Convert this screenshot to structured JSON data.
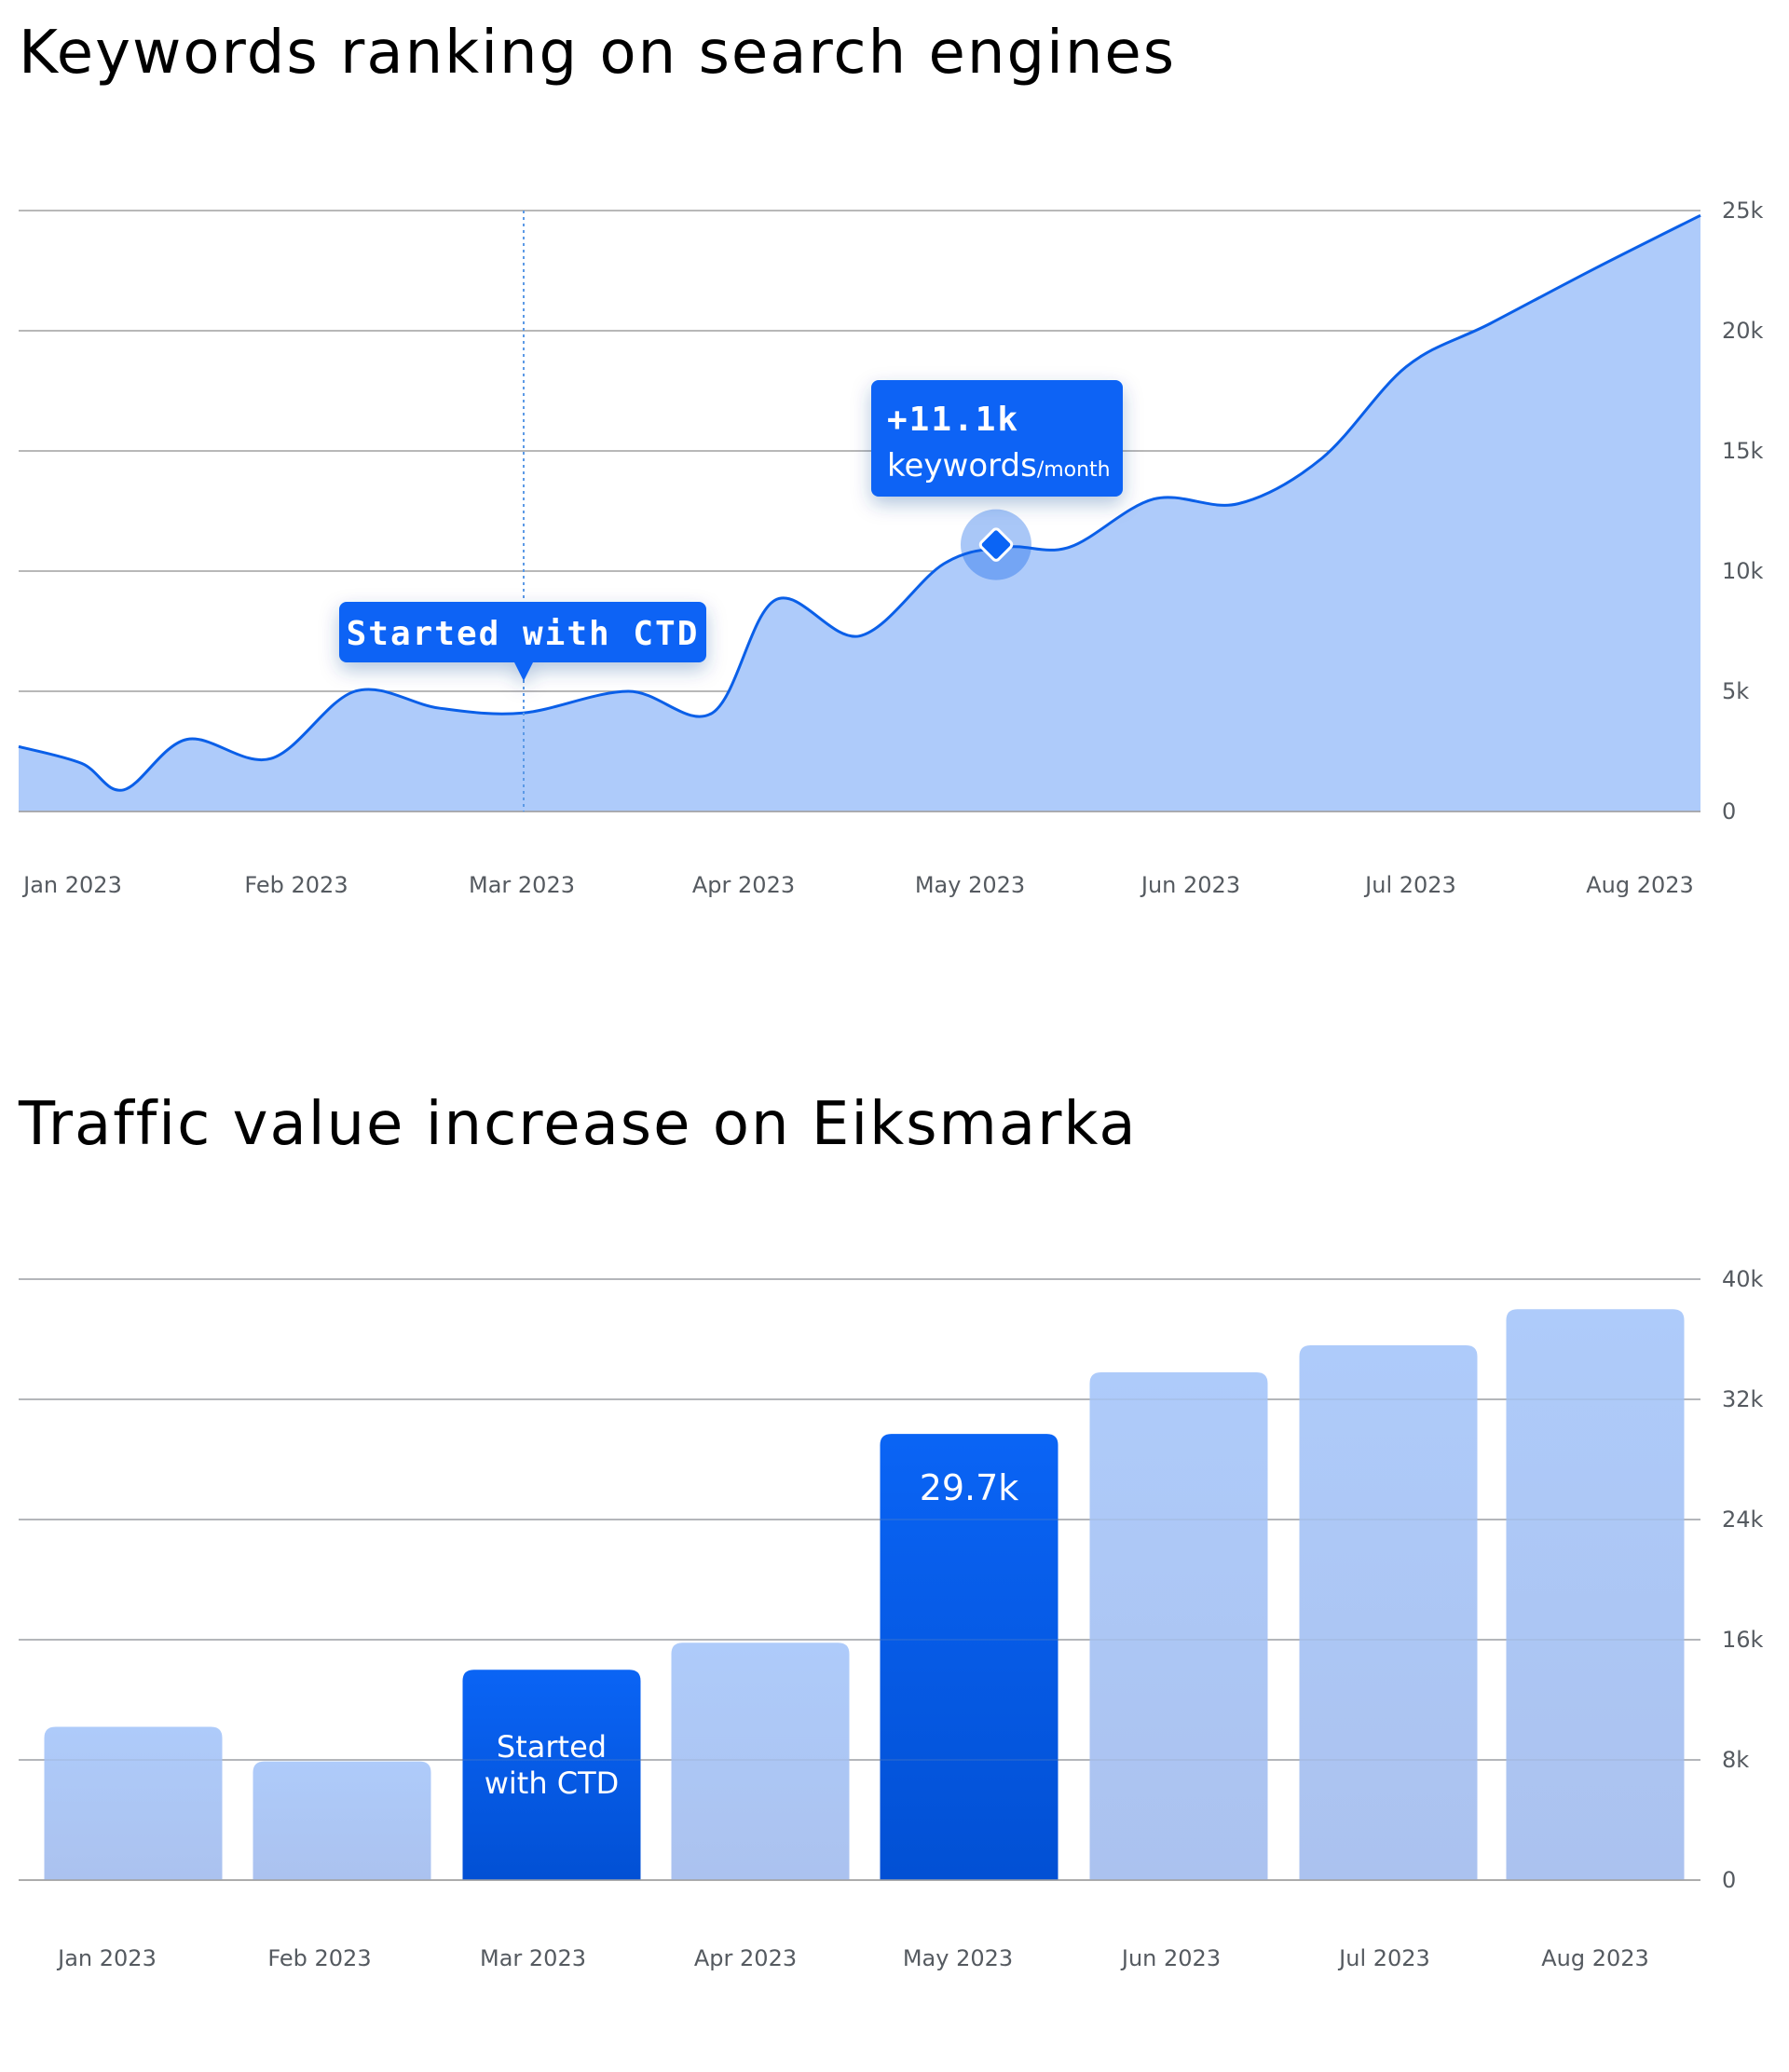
{
  "chart_data": [
    {
      "type": "area",
      "title": "Keywords ranking on search engines",
      "x": [
        "Jan 2023",
        "Feb 2023",
        "Mar 2023",
        "Apr 2023",
        "May 2023",
        "Jun 2023",
        "Jul 2023",
        "Aug 2023"
      ],
      "ylim": [
        0,
        25000
      ],
      "yticks": [
        "0",
        "5k",
        "10k",
        "15k",
        "20k",
        "25k"
      ],
      "grid": true,
      "series": [
        {
          "values_by_month": [
            [
              2023.0,
              2700
            ],
            [
              2023.3,
              2000
            ],
            [
              2023.5,
              900
            ],
            [
              2023.8,
              3000
            ],
            [
              2024.2,
              2200
            ],
            [
              2024.6,
              5000
            ],
            [
              2025.0,
              4300
            ],
            [
              2025.4,
              4100
            ],
            [
              2025.9,
              5000
            ],
            [
              2026.3,
              4100
            ],
            [
              2026.6,
              8800
            ],
            [
              2027.0,
              7300
            ],
            [
              2027.4,
              10300
            ],
            [
              2027.7,
              11000
            ],
            [
              2028.0,
              11000
            ],
            [
              2028.4,
              13000
            ],
            [
              2028.8,
              12800
            ],
            [
              2029.2,
              14700
            ],
            [
              2029.6,
              18500
            ],
            [
              2030.0,
              20300
            ],
            [
              2030.5,
              22600
            ],
            [
              2031.0,
              24800
            ]
          ]
        }
      ],
      "annotations": [
        {
          "text": "Started with CTD",
          "x": "Mar 2023"
        },
        {
          "text": "+11.1k",
          "subtext_main": "keywords",
          "subtext_unit": "/month",
          "x": "May 2023",
          "y": 11100
        }
      ],
      "colors": {
        "line": "#0a5fe8",
        "fill": "#aecbfa",
        "accent": "#0a64f5",
        "grid": "#a0a0a0"
      }
    },
    {
      "type": "bar",
      "title": "Traffic value increase on Eiksmarka",
      "categories": [
        "Jan 2023",
        "Feb 2023",
        "Mar 2023",
        "Apr 2023",
        "May 2023",
        "Jun 2023",
        "Jul 2023",
        "Aug 2023"
      ],
      "values": [
        10200,
        7900,
        14000,
        15800,
        29700,
        33800,
        35600,
        38000
      ],
      "highlighted": [
        false,
        false,
        true,
        false,
        true,
        false,
        false,
        false
      ],
      "bar_labels": [
        "",
        "",
        "Started\nwith CTD",
        "",
        "29.7k",
        "",
        "",
        ""
      ],
      "ylim": [
        0,
        40000
      ],
      "yticks": [
        "0",
        "8k",
        "16k",
        "24k",
        "32k",
        "40k"
      ],
      "grid": true,
      "colors": {
        "bar": "#aecbfa",
        "highlight": "#0a64f5",
        "grid": "#a0a0a0"
      }
    }
  ]
}
